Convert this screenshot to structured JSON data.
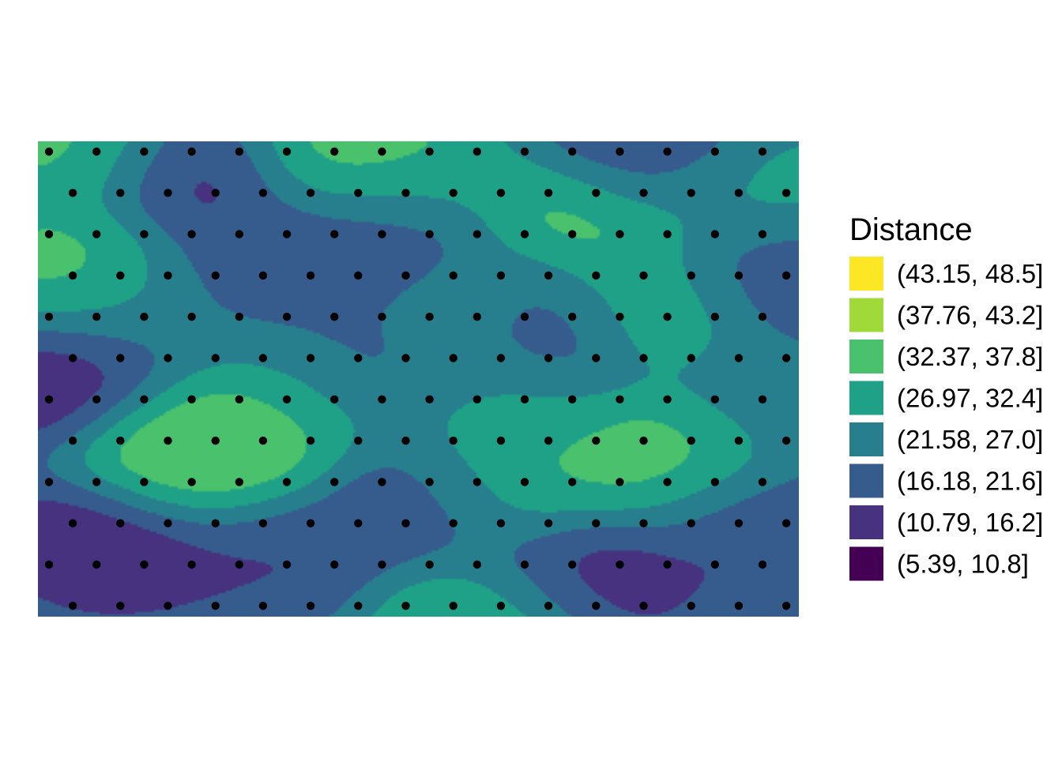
{
  "chart_data": {
    "type": "heatmap",
    "subtype": "filled-contour",
    "title": "",
    "xlabel": "",
    "ylabel": "",
    "axes_visible": false,
    "grid": false,
    "legend_position": "right",
    "legend": {
      "title": "Distance",
      "bins": [
        {
          "label": "(43.15, 48.5]",
          "color": "#FDE725"
        },
        {
          "label": "(37.76, 43.2]",
          "color": "#A0DA39"
        },
        {
          "label": "(32.37, 37.8]",
          "color": "#4AC16D"
        },
        {
          "label": "(26.97, 32.4]",
          "color": "#1FA187"
        },
        {
          "label": "(21.58, 27.0]",
          "color": "#277F8E"
        },
        {
          "label": "(16.18, 21.6]",
          "color": "#365C8D"
        },
        {
          "label": "(10.79, 16.2]",
          "color": "#46327E"
        },
        {
          "label": "(5.39, 10.8]",
          "color": "#440154"
        }
      ]
    },
    "value_range": [
      5.39,
      48.5
    ],
    "point_color": "#000000",
    "point_grid": {
      "columns": 16,
      "rows": 12,
      "odd_row_offset": 0.5,
      "description": "black sample points on a staggered hexagonal grid"
    },
    "field_features": [
      {
        "x": 0.22,
        "y": 0.66,
        "value": 45
      },
      {
        "x": 0.2,
        "y": 0.66,
        "value": 38
      },
      {
        "x": 0.05,
        "y": 0.28,
        "value": 38
      },
      {
        "x": 0.07,
        "y": 0.0,
        "value": 38
      },
      {
        "x": 0.38,
        "y": 0.0,
        "value": 40
      },
      {
        "x": 0.72,
        "y": 0.15,
        "value": 40
      },
      {
        "x": 0.8,
        "y": 0.33,
        "value": 40
      },
      {
        "x": 0.84,
        "y": 0.68,
        "value": 40
      },
      {
        "x": 0.62,
        "y": 0.72,
        "value": 38
      },
      {
        "x": 0.58,
        "y": 0.35,
        "value": 34
      },
      {
        "x": 0.32,
        "y": 0.55,
        "value": 33
      },
      {
        "x": 0.92,
        "y": 0.1,
        "value": 33
      },
      {
        "x": 0.6,
        "y": 1.0,
        "value": 38
      },
      {
        "x": 0.48,
        "y": 0.1,
        "value": 35
      },
      {
        "x": 0.04,
        "y": 0.5,
        "value": 7
      },
      {
        "x": 0.1,
        "y": 0.84,
        "value": 7
      },
      {
        "x": 0.21,
        "y": 0.05,
        "value": 8
      },
      {
        "x": 0.46,
        "y": 0.2,
        "value": 10
      },
      {
        "x": 0.66,
        "y": 0.37,
        "value": 7
      },
      {
        "x": 0.8,
        "y": 0.03,
        "value": 9
      },
      {
        "x": 0.71,
        "y": 0.92,
        "value": 8
      },
      {
        "x": 0.52,
        "y": 0.76,
        "value": 13
      },
      {
        "x": 0.93,
        "y": 0.27,
        "value": 14
      },
      {
        "x": 0.93,
        "y": 0.8,
        "value": 13
      },
      {
        "x": 0.3,
        "y": 0.85,
        "value": 14
      },
      {
        "x": 0.28,
        "y": 0.25,
        "value": 16
      },
      {
        "x": 0.44,
        "y": 0.46,
        "value": 17
      },
      {
        "x": 0.36,
        "y": 0.35,
        "value": 22
      },
      {
        "x": 0.14,
        "y": 0.38,
        "value": 24
      },
      {
        "x": 0.98,
        "y": 0.55,
        "value": 22
      },
      {
        "x": 0.6,
        "y": 0.55,
        "value": 30
      }
    ]
  }
}
